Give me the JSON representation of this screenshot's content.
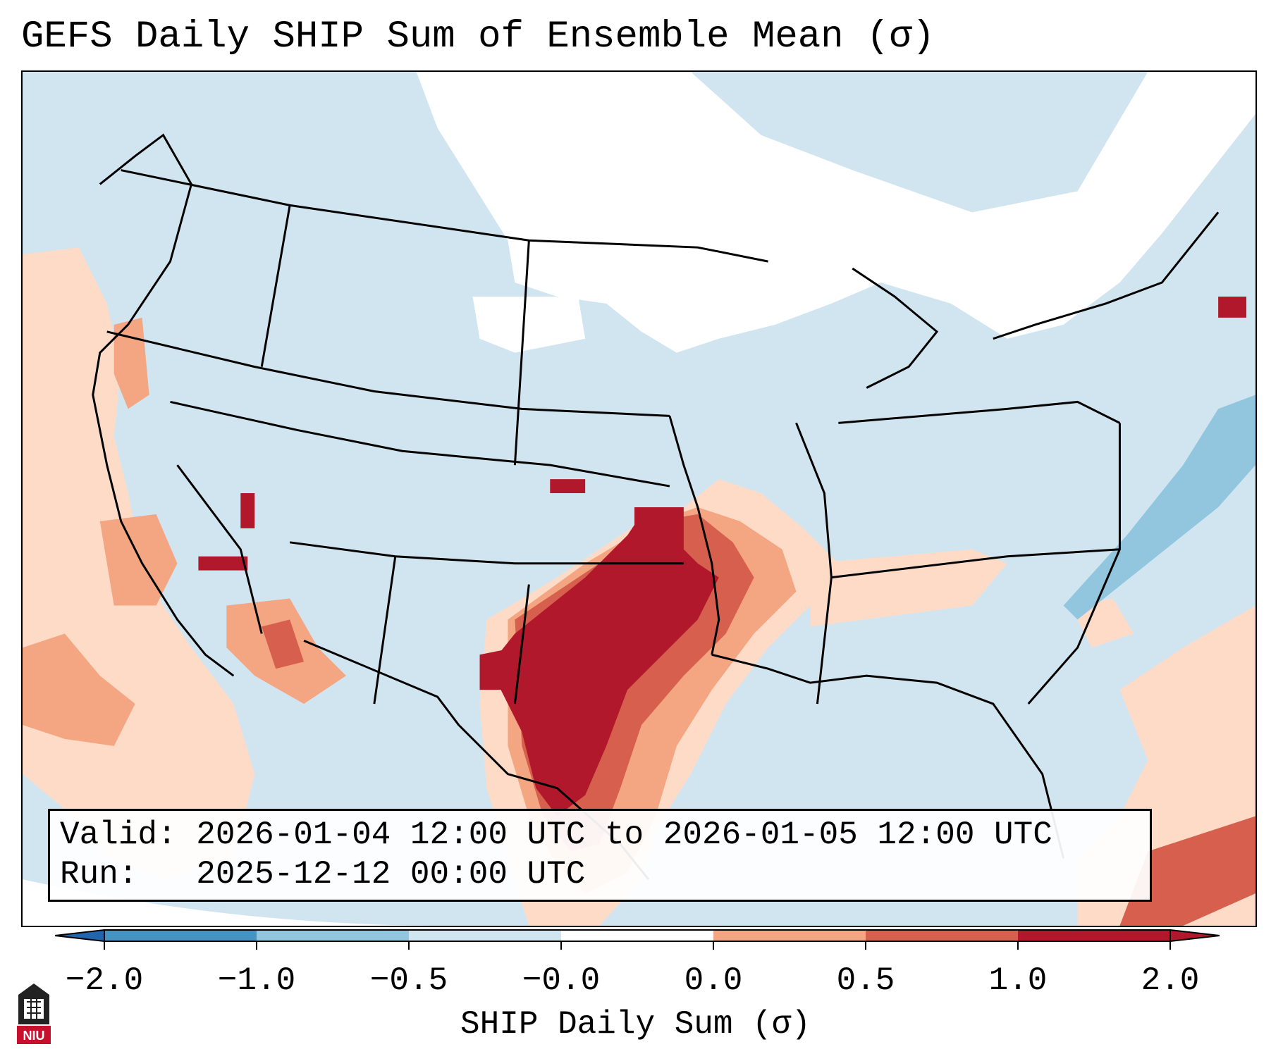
{
  "title": "GEFS Daily SHIP Sum of Ensemble Mean (σ)",
  "info": {
    "valid_label": "Valid:",
    "valid_value": "2026-01-04 12:00 UTC to 2026-01-05 12:00 UTC",
    "run_label": "Run:",
    "run_value": "2025-12-12 00:00 UTC"
  },
  "colorbar": {
    "label": "SHIP Daily Sum (σ)",
    "ticks": [
      "−2.0",
      "−1.0",
      "−0.5",
      "−0.0",
      "0.0",
      "0.5",
      "1.0",
      "2.0"
    ],
    "colors": [
      "#2166ac",
      "#4393c3",
      "#92c5de",
      "#d1e5f0",
      "#fddbc7",
      "#f4a582",
      "#d6604d",
      "#b2182b"
    ]
  },
  "logo": {
    "text": "NIU"
  },
  "palette": {
    "ocean_bg": "#d1e5f0",
    "neutral": "#ffffff",
    "light_positive": "#fddbc7",
    "moderate_positive": "#f4a582",
    "strong_positive": "#d6604d",
    "extreme_positive": "#b2182b",
    "light_negative": "#92c5de"
  }
}
